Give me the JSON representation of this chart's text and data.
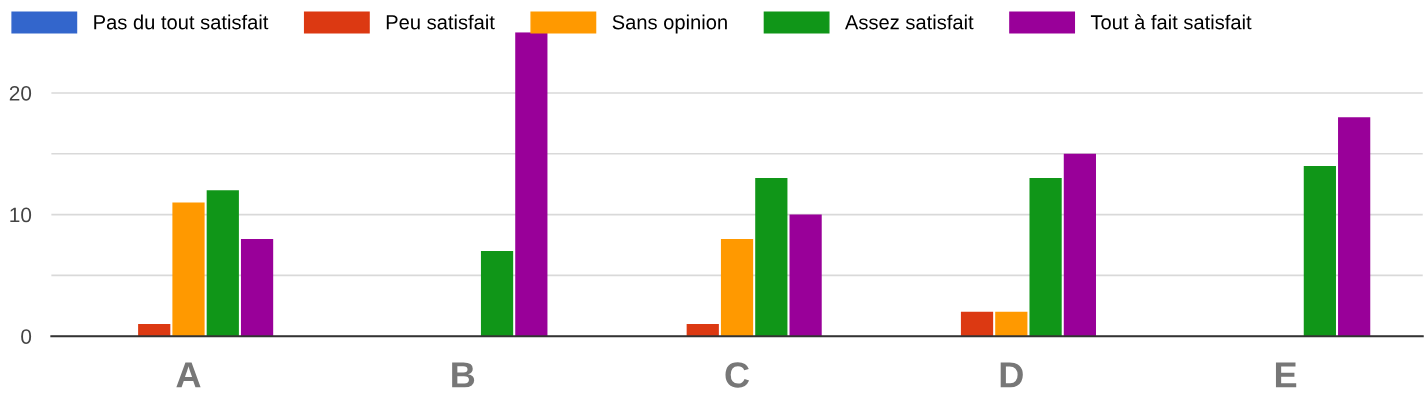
{
  "chart_data": {
    "type": "bar",
    "categories": [
      "A",
      "B",
      "C",
      "D",
      "E"
    ],
    "series": [
      {
        "name": "Pas du tout satisfait",
        "color": "#3366cc",
        "values": [
          0,
          0,
          0,
          0,
          0
        ]
      },
      {
        "name": "Peu satisfait",
        "color": "#dc3912",
        "values": [
          1,
          0,
          1,
          2,
          0
        ]
      },
      {
        "name": "Sans opinion",
        "color": "#ff9900",
        "values": [
          11,
          0,
          8,
          2,
          0
        ]
      },
      {
        "name": "Assez satisfait",
        "color": "#109618",
        "values": [
          12,
          7,
          13,
          13,
          14
        ]
      },
      {
        "name": "Tout à fait satisfait",
        "color": "#990099",
        "values": [
          8,
          25,
          10,
          15,
          18
        ]
      }
    ],
    "ylim": [
      0,
      25
    ],
    "yticks": [
      0,
      {
        "value": 5,
        "label": null
      },
      10,
      {
        "value": 15,
        "label": null
      },
      20
    ],
    "grid": "y",
    "legend": "top left"
  }
}
